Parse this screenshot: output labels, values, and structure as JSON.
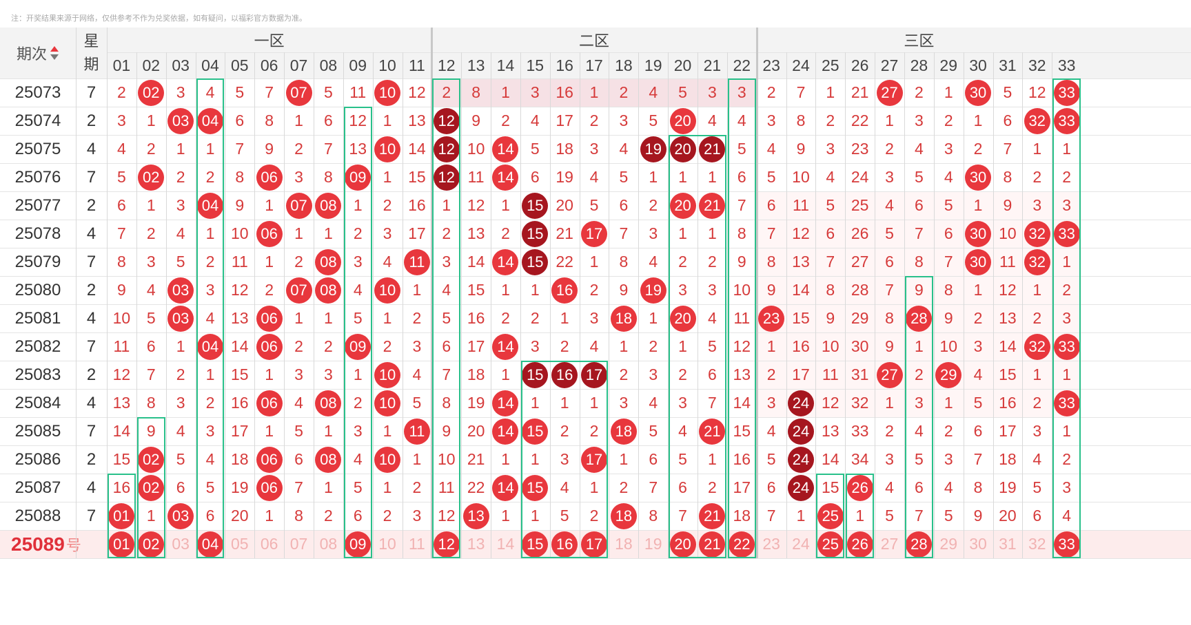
{
  "note": "注：开奖结果来源于网络，仅供参考不作为兑奖依据，如有疑问，以福彩官方数据为准。",
  "header": {
    "period_label": "期次",
    "sort_icon": "sort-up-down-icon",
    "week_label_1": "星",
    "week_label_2": "期",
    "zones": [
      "一区",
      "二区",
      "三区"
    ],
    "numbers": [
      "01",
      "02",
      "03",
      "04",
      "05",
      "06",
      "07",
      "08",
      "09",
      "10",
      "11",
      "12",
      "13",
      "14",
      "15",
      "16",
      "17",
      "18",
      "19",
      "20",
      "21",
      "22",
      "23",
      "24",
      "25",
      "26",
      "27",
      "28",
      "29",
      "30",
      "31",
      "32",
      "33"
    ]
  },
  "rows": [
    {
      "period": "25073",
      "week": "7",
      "cells": [
        "2",
        "02",
        "3",
        "4",
        "5",
        "7",
        "07",
        "5",
        "11",
        "10",
        "12",
        "2",
        "8",
        "1",
        "3",
        "16",
        "1",
        "2",
        "4",
        "5",
        "3",
        "3",
        "2",
        "7",
        "1",
        "21",
        "27",
        "2",
        "1",
        "30",
        "5",
        "12",
        "33"
      ],
      "hits": [
        2,
        7,
        10,
        27,
        30,
        33
      ],
      "dark": []
    },
    {
      "period": "25074",
      "week": "2",
      "cells": [
        "3",
        "1",
        "03",
        "04",
        "6",
        "8",
        "1",
        "6",
        "12",
        "1",
        "13",
        "12",
        "9",
        "2",
        "4",
        "17",
        "2",
        "3",
        "5",
        "20",
        "4",
        "4",
        "3",
        "8",
        "2",
        "22",
        "1",
        "3",
        "2",
        "1",
        "6",
        "32",
        "33"
      ],
      "hits": [
        3,
        4,
        12,
        20,
        32,
        33
      ],
      "dark": [
        12
      ]
    },
    {
      "period": "25075",
      "week": "4",
      "cells": [
        "4",
        "2",
        "1",
        "1",
        "7",
        "9",
        "2",
        "7",
        "13",
        "10",
        "14",
        "12",
        "10",
        "14",
        "5",
        "18",
        "3",
        "4",
        "19",
        "20",
        "21",
        "5",
        "4",
        "9",
        "3",
        "23",
        "2",
        "4",
        "3",
        "2",
        "7",
        "1",
        "1"
      ],
      "hits": [
        10,
        12,
        14,
        19,
        20,
        21
      ],
      "dark": [
        12,
        19,
        20,
        21
      ]
    },
    {
      "period": "25076",
      "week": "7",
      "cells": [
        "5",
        "02",
        "2",
        "2",
        "8",
        "06",
        "3",
        "8",
        "09",
        "1",
        "15",
        "12",
        "11",
        "14",
        "6",
        "19",
        "4",
        "5",
        "1",
        "1",
        "1",
        "6",
        "5",
        "10",
        "4",
        "24",
        "3",
        "5",
        "4",
        "30",
        "8",
        "2",
        "2"
      ],
      "hits": [
        2,
        6,
        9,
        12,
        14,
        30
      ],
      "dark": [
        12
      ]
    },
    {
      "period": "25077",
      "week": "2",
      "cells": [
        "6",
        "1",
        "3",
        "04",
        "9",
        "1",
        "07",
        "08",
        "1",
        "2",
        "16",
        "1",
        "12",
        "1",
        "15",
        "20",
        "5",
        "6",
        "2",
        "20",
        "21",
        "7",
        "6",
        "11",
        "5",
        "25",
        "4",
        "6",
        "5",
        "1",
        "9",
        "3",
        "3"
      ],
      "hits": [
        4,
        7,
        8,
        15,
        20,
        21
      ],
      "dark": [
        15
      ]
    },
    {
      "period": "25078",
      "week": "4",
      "cells": [
        "7",
        "2",
        "4",
        "1",
        "10",
        "06",
        "1",
        "1",
        "2",
        "3",
        "17",
        "2",
        "13",
        "2",
        "15",
        "21",
        "17",
        "7",
        "3",
        "1",
        "1",
        "8",
        "7",
        "12",
        "6",
        "26",
        "5",
        "7",
        "6",
        "30",
        "10",
        "32",
        "33"
      ],
      "hits": [
        6,
        15,
        17,
        30,
        32,
        33
      ],
      "dark": [
        15
      ]
    },
    {
      "period": "25079",
      "week": "7",
      "cells": [
        "8",
        "3",
        "5",
        "2",
        "11",
        "1",
        "2",
        "08",
        "3",
        "4",
        "11",
        "3",
        "14",
        "14",
        "15",
        "22",
        "1",
        "8",
        "4",
        "2",
        "2",
        "9",
        "8",
        "13",
        "7",
        "27",
        "6",
        "8",
        "7",
        "30",
        "11",
        "32",
        "1"
      ],
      "hits": [
        8,
        11,
        14,
        15,
        30,
        32
      ],
      "dark": [
        15
      ]
    },
    {
      "period": "25080",
      "week": "2",
      "cells": [
        "9",
        "4",
        "03",
        "3",
        "12",
        "2",
        "07",
        "08",
        "4",
        "10",
        "1",
        "4",
        "15",
        "1",
        "1",
        "16",
        "2",
        "9",
        "19",
        "3",
        "3",
        "10",
        "9",
        "14",
        "8",
        "28",
        "7",
        "9",
        "8",
        "1",
        "12",
        "1",
        "2"
      ],
      "hits": [
        3,
        7,
        8,
        10,
        16,
        19
      ],
      "dark": []
    },
    {
      "period": "25081",
      "week": "4",
      "cells": [
        "10",
        "5",
        "03",
        "4",
        "13",
        "06",
        "1",
        "1",
        "5",
        "1",
        "2",
        "5",
        "16",
        "2",
        "2",
        "1",
        "3",
        "18",
        "1",
        "20",
        "4",
        "11",
        "23",
        "15",
        "9",
        "29",
        "8",
        "28",
        "9",
        "2",
        "13",
        "2",
        "3"
      ],
      "hits": [
        3,
        6,
        18,
        20,
        23,
        28
      ],
      "dark": []
    },
    {
      "period": "25082",
      "week": "7",
      "cells": [
        "11",
        "6",
        "1",
        "04",
        "14",
        "06",
        "2",
        "2",
        "09",
        "2",
        "3",
        "6",
        "17",
        "14",
        "3",
        "2",
        "4",
        "1",
        "2",
        "1",
        "5",
        "12",
        "1",
        "16",
        "10",
        "30",
        "9",
        "1",
        "10",
        "3",
        "14",
        "32",
        "33"
      ],
      "hits": [
        4,
        6,
        9,
        14,
        32,
        33
      ],
      "dark": []
    },
    {
      "period": "25083",
      "week": "2",
      "cells": [
        "12",
        "7",
        "2",
        "1",
        "15",
        "1",
        "3",
        "3",
        "1",
        "10",
        "4",
        "7",
        "18",
        "1",
        "15",
        "16",
        "17",
        "2",
        "3",
        "2",
        "6",
        "13",
        "2",
        "17",
        "11",
        "31",
        "27",
        "2",
        "29",
        "4",
        "15",
        "1",
        "1"
      ],
      "hits": [
        10,
        15,
        16,
        17,
        27,
        29
      ],
      "dark": [
        15,
        16,
        17
      ]
    },
    {
      "period": "25084",
      "week": "4",
      "cells": [
        "13",
        "8",
        "3",
        "2",
        "16",
        "06",
        "4",
        "08",
        "2",
        "10",
        "5",
        "8",
        "19",
        "14",
        "1",
        "1",
        "1",
        "3",
        "4",
        "3",
        "7",
        "14",
        "3",
        "24",
        "12",
        "32",
        "1",
        "3",
        "1",
        "5",
        "16",
        "2",
        "33"
      ],
      "hits": [
        6,
        8,
        10,
        14,
        24,
        33
      ],
      "dark": [
        24
      ]
    },
    {
      "period": "25085",
      "week": "7",
      "cells": [
        "14",
        "9",
        "4",
        "3",
        "17",
        "1",
        "5",
        "1",
        "3",
        "1",
        "11",
        "9",
        "20",
        "14",
        "15",
        "2",
        "2",
        "18",
        "5",
        "4",
        "21",
        "15",
        "4",
        "24",
        "13",
        "33",
        "2",
        "4",
        "2",
        "6",
        "17",
        "3",
        "1"
      ],
      "hits": [
        11,
        14,
        15,
        18,
        21,
        24
      ],
      "dark": [
        24
      ]
    },
    {
      "period": "25086",
      "week": "2",
      "cells": [
        "15",
        "02",
        "5",
        "4",
        "18",
        "06",
        "6",
        "08",
        "4",
        "10",
        "1",
        "10",
        "21",
        "1",
        "1",
        "3",
        "17",
        "1",
        "6",
        "5",
        "1",
        "16",
        "5",
        "24",
        "14",
        "34",
        "3",
        "5",
        "3",
        "7",
        "18",
        "4",
        "2"
      ],
      "hits": [
        2,
        6,
        8,
        10,
        17,
        24
      ],
      "dark": [
        24
      ]
    },
    {
      "period": "25087",
      "week": "4",
      "cells": [
        "16",
        "02",
        "6",
        "5",
        "19",
        "06",
        "7",
        "1",
        "5",
        "1",
        "2",
        "11",
        "22",
        "14",
        "15",
        "4",
        "1",
        "2",
        "7",
        "6",
        "2",
        "17",
        "6",
        "24",
        "15",
        "26",
        "4",
        "6",
        "4",
        "8",
        "19",
        "5",
        "3"
      ],
      "hits": [
        2,
        6,
        14,
        15,
        24,
        26
      ],
      "dark": [
        24
      ]
    },
    {
      "period": "25088",
      "week": "7",
      "cells": [
        "01",
        "1",
        "03",
        "6",
        "20",
        "1",
        "8",
        "2",
        "6",
        "2",
        "3",
        "12",
        "13",
        "1",
        "1",
        "5",
        "2",
        "18",
        "8",
        "7",
        "21",
        "18",
        "7",
        "1",
        "25",
        "1",
        "5",
        "7",
        "5",
        "9",
        "20",
        "6",
        "4"
      ],
      "hits": [
        1,
        3,
        13,
        18,
        21,
        25
      ],
      "dark": []
    }
  ],
  "next_row": {
    "period": "25089",
    "suffix": "号",
    "cells": [
      "01",
      "02",
      "03",
      "04",
      "05",
      "06",
      "07",
      "08",
      "09",
      "10",
      "11",
      "12",
      "13",
      "14",
      "15",
      "16",
      "17",
      "18",
      "19",
      "20",
      "21",
      "22",
      "23",
      "24",
      "25",
      "26",
      "27",
      "28",
      "29",
      "30",
      "31",
      "32",
      "33"
    ],
    "picks": [
      1,
      2,
      4,
      9,
      12,
      15,
      16,
      17,
      20,
      21,
      22,
      25,
      26,
      28,
      33
    ]
  },
  "colors": {
    "hit_red": "#e8373d",
    "hit_dark": "#a6161f",
    "miss_text": "#d63a3a",
    "box_green": "#28c08a",
    "predict_bg": "#fdecec"
  }
}
